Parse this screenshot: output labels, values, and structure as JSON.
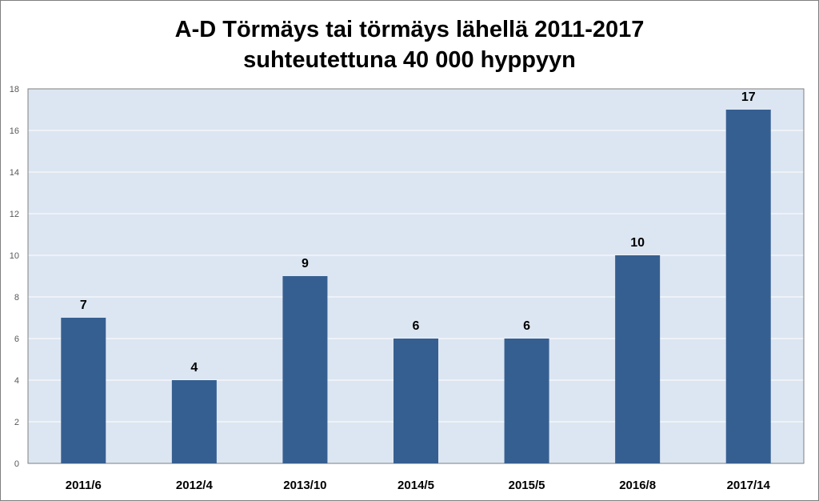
{
  "chart_data": {
    "type": "bar",
    "title_lines": [
      "A-D Törmäys tai törmäys lähellä 2011-2017",
      "suhteutettuna 40 000 hyppyyn"
    ],
    "categories": [
      "2011/6",
      "2012/4",
      "2013/10",
      "2014/5",
      "2015/5",
      "2016/8",
      "2017/14"
    ],
    "series": [
      {
        "values": [
          7,
          4,
          9,
          6,
          6,
          10,
          17
        ]
      }
    ],
    "data_labels": [
      "7",
      "4",
      "9",
      "6",
      "6",
      "10",
      "17"
    ],
    "y_ticks": [
      "0",
      "2",
      "4",
      "6",
      "8",
      "10",
      "12",
      "14",
      "16",
      "18"
    ],
    "ylim": [
      0,
      18
    ],
    "grid": true,
    "legend": "none",
    "colors": {
      "bar": "#365f91",
      "plot_bg": "#dce6f2",
      "grid": "#ffffff",
      "axis": "#7f7f7f"
    }
  }
}
